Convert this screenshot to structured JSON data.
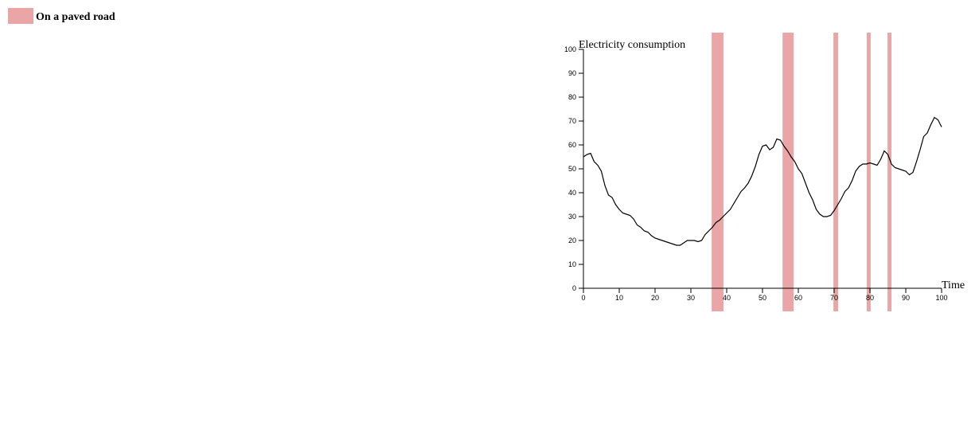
{
  "chart_data": {
    "type": "line",
    "y_label": "Electricity consumption",
    "x_label": "Time",
    "x": [
      0,
      1,
      2,
      3,
      4,
      5,
      6,
      7,
      8,
      9,
      10,
      11,
      12,
      13,
      14,
      15,
      16,
      17,
      18,
      19,
      20,
      21,
      22,
      23,
      24,
      25,
      26,
      27,
      28,
      29,
      30,
      31,
      32,
      33,
      34,
      35,
      36,
      37,
      38,
      39,
      40,
      41,
      42,
      43,
      44,
      45,
      46,
      47,
      48,
      49,
      50,
      51,
      52,
      53,
      54,
      55,
      56,
      57,
      58,
      59,
      60,
      61,
      62,
      63,
      64,
      65,
      66,
      67,
      68,
      69,
      70,
      71,
      72,
      73,
      74,
      75,
      76,
      77,
      78,
      79,
      80,
      81,
      82,
      83,
      84,
      85,
      86,
      87,
      88,
      89,
      90,
      91,
      92,
      93,
      94,
      95,
      96,
      97,
      98,
      99,
      100
    ],
    "values": [
      55,
      56,
      56.5,
      53,
      51.5,
      49,
      43,
      39,
      38,
      35,
      33,
      31.5,
      31,
      30.5,
      29,
      26.5,
      25.5,
      24,
      23.5,
      22,
      21,
      20.5,
      20,
      19.5,
      19,
      18.5,
      18,
      18,
      19,
      20,
      20,
      20,
      19.5,
      20,
      22.5,
      24,
      25.5,
      27.5,
      28.5,
      30,
      31.5,
      33,
      35.5,
      38,
      40.5,
      42,
      44,
      47,
      51,
      56,
      59.5,
      60,
      58,
      59,
      62.5,
      62,
      59.5,
      57.5,
      55,
      53,
      50,
      48,
      44,
      40,
      37,
      33,
      31,
      30,
      30,
      30.5,
      32.5,
      35,
      37.5,
      40.5,
      42,
      45,
      49,
      51,
      52,
      52,
      52.5,
      52,
      51.5,
      54,
      57.5,
      56,
      52,
      50.5,
      50,
      49.5,
      49,
      47.5,
      48.5,
      53,
      58,
      63.5,
      65,
      68.5,
      71.5,
      70.5,
      67.5
    ],
    "color": "#000000",
    "regions": {
      "name": "On a paved road",
      "color": "#eaa6a6",
      "spans": [
        [
          35.8,
          39.1
        ],
        [
          55.6,
          58.7
        ],
        [
          69.8,
          71.1
        ],
        [
          79.1,
          80.2
        ],
        [
          84.9,
          86.0
        ]
      ]
    },
    "xlim": [
      0,
      100
    ],
    "ylim": [
      0,
      100
    ],
    "xticks": [
      0,
      10,
      20,
      30,
      40,
      50,
      60,
      70,
      80,
      90,
      100
    ],
    "yticks": [
      0,
      10,
      20,
      30,
      40,
      50,
      60,
      70,
      80,
      90,
      100
    ]
  }
}
